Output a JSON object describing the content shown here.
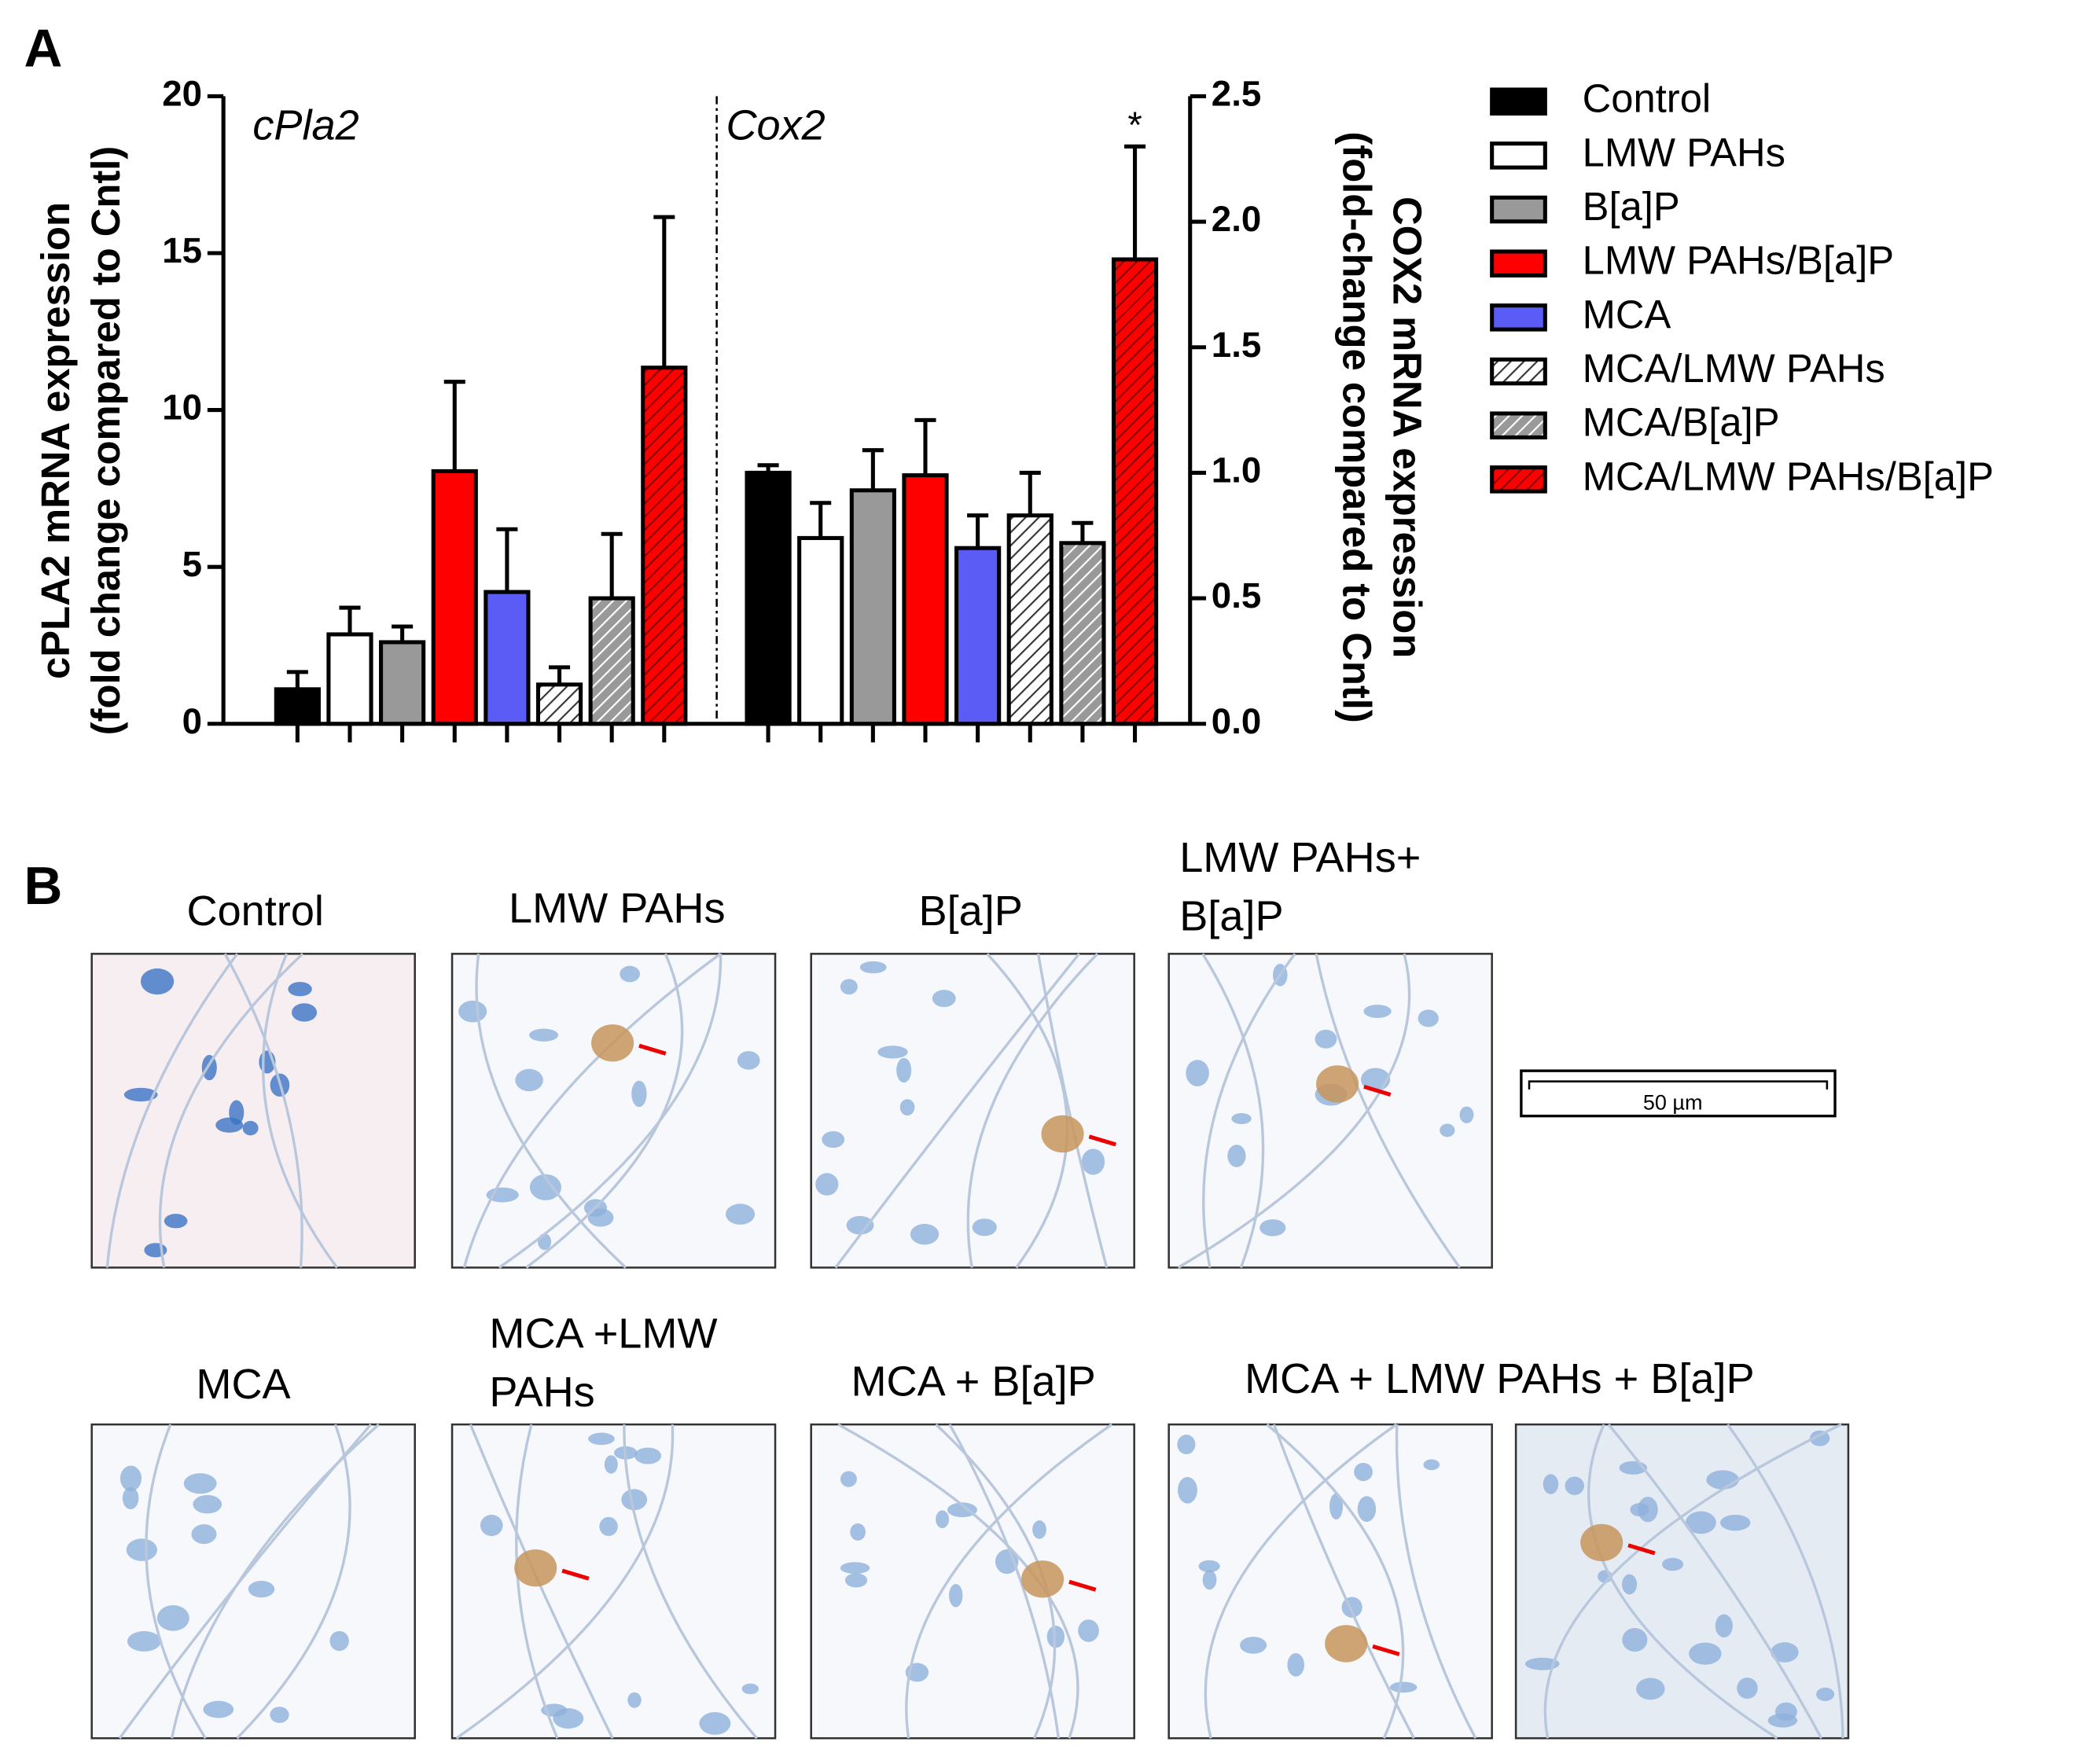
{
  "chart_data": {
    "type": "bar",
    "panel_label": "A",
    "groups": [
      "cPla2",
      "Cox2"
    ],
    "group_axes": [
      "y",
      "y2"
    ],
    "ylabel": [
      "cPLA2 mRNA expression",
      "(fold change compared to Cntl)"
    ],
    "y2label": [
      "COX2 mRNA expression",
      "(fold-change compared to Cntl)"
    ],
    "ylim": [
      0,
      20
    ],
    "yticks": [
      0,
      5,
      10,
      15,
      20
    ],
    "y2lim": [
      0,
      2.5
    ],
    "y2ticks": [
      {
        "value": 0,
        "label": "0.0"
      },
      {
        "value": 0.5,
        "label": "0.5"
      },
      {
        "value": 1,
        "label": "1.0"
      },
      {
        "value": 1.5,
        "label": "1.5"
      },
      {
        "value": 2,
        "label": "2.0"
      },
      {
        "value": 2.5,
        "label": "2.5"
      }
    ],
    "annotation": "*",
    "series": [
      {
        "name": "Control",
        "color": "#000000",
        "hatched": false,
        "values": [
          1.1,
          1.0
        ],
        "errors": [
          0.55,
          0.03
        ]
      },
      {
        "name": "LMW PAHs",
        "color": "#ffffff",
        "hatched": false,
        "values": [
          2.85,
          0.74
        ],
        "errors": [
          0.85,
          0.14
        ]
      },
      {
        "name": "B[a]P",
        "color": "#999999",
        "hatched": false,
        "values": [
          2.6,
          0.93
        ],
        "errors": [
          0.5,
          0.16
        ]
      },
      {
        "name": "LMW PAHs/B[a]P",
        "color": "#ff0000",
        "hatched": false,
        "values": [
          8.05,
          0.99
        ],
        "errors": [
          2.85,
          0.22
        ]
      },
      {
        "name": "MCA",
        "color": "#5b5bf5",
        "hatched": false,
        "values": [
          4.2,
          0.7
        ],
        "errors": [
          2.0,
          0.13
        ]
      },
      {
        "name": "MCA/LMW PAHs",
        "color": "#ffffff",
        "hatched": true,
        "values": [
          1.25,
          0.83
        ],
        "errors": [
          0.55,
          0.17
        ]
      },
      {
        "name": "MCA/B[a]P",
        "color": "#999999",
        "hatched": true,
        "values": [
          4.0,
          0.72
        ],
        "errors": [
          2.05,
          0.08
        ]
      },
      {
        "name": "MCA/LMW PAHs/B[a]P",
        "color": "#ff0000",
        "hatched": true,
        "values": [
          11.35,
          1.85
        ],
        "errors": [
          4.8,
          0.45
        ]
      }
    ]
  },
  "panel_b": {
    "label": "B",
    "titles": [
      [
        "Control"
      ],
      [
        "LMW PAHs"
      ],
      [
        "B[a]P"
      ],
      [
        "LMW PAHs+",
        "B[a]P"
      ],
      [
        "MCA"
      ],
      [
        "MCA +LMW",
        "PAHs"
      ],
      [
        "MCA + B[a]P"
      ],
      [
        "MCA + LMW PAHs + B[a]P"
      ]
    ],
    "scale_bar": "50 µm"
  }
}
